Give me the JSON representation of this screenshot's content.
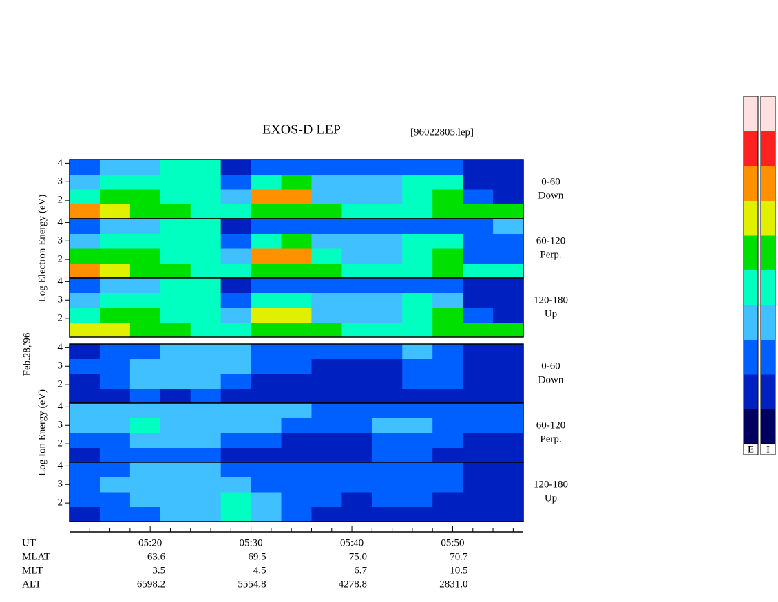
{
  "chart_data": {
    "type": "spectrogram",
    "title": "EXOS-D LEP",
    "file": "[96022805.lep]",
    "date": "Feb.28,'96",
    "xlim": [
      312,
      357
    ],
    "xticks": [
      {
        "value": 320,
        "label": "05:20"
      },
      {
        "value": 330,
        "label": "05:30"
      },
      {
        "value": 340,
        "label": "05:40"
      },
      {
        "value": 350,
        "label": "05:50"
      }
    ],
    "xminor": [
      314,
      316,
      318,
      322,
      324,
      326,
      328,
      332,
      334,
      336,
      338,
      342,
      344,
      346,
      348,
      352,
      354,
      356
    ],
    "ylim": [
      1,
      4.2
    ],
    "yticks": [
      2,
      3,
      4
    ],
    "time_edges": [
      312,
      315,
      318,
      321,
      324,
      327,
      330,
      333,
      336,
      339,
      342,
      345,
      348,
      351,
      354,
      357
    ],
    "energy_edges": [
      1,
      1.8,
      2.6,
      3.4,
      4.2
    ],
    "colorscale": [
      "#000060",
      "#0020c0",
      "#0060ff",
      "#40c0ff",
      "#00ffc0",
      "#00e000",
      "#e0f000",
      "#ff9000",
      "#ff2020",
      "#ffe0e0"
    ],
    "groups": [
      {
        "ylabel": "Log Electron Energy (eV)",
        "colorbar": "E",
        "panels": [
          {
            "angle": "0-60",
            "direction": "Down",
            "values": [
              [
                7,
                6,
                5,
                5,
                4,
                4,
                5,
                5,
                5,
                4,
                4,
                4,
                5,
                5,
                5
              ],
              [
                4,
                5,
                5,
                4,
                4,
                3,
                7,
                7,
                3,
                3,
                3,
                4,
                5,
                2,
                1
              ],
              [
                3,
                4,
                4,
                4,
                4,
                2,
                4,
                5,
                3,
                3,
                3,
                4,
                4,
                1,
                1
              ],
              [
                2,
                3,
                3,
                4,
                4,
                1,
                2,
                2,
                2,
                2,
                2,
                2,
                2,
                1,
                1
              ]
            ]
          },
          {
            "angle": "60-120",
            "direction": "Perp.",
            "values": [
              [
                7,
                6,
                5,
                5,
                4,
                4,
                5,
                5,
                5,
                4,
                4,
                4,
                5,
                4,
                4
              ],
              [
                5,
                5,
                5,
                4,
                4,
                3,
                7,
                7,
                4,
                3,
                3,
                4,
                5,
                2,
                2
              ],
              [
                3,
                4,
                4,
                4,
                4,
                2,
                4,
                5,
                3,
                3,
                3,
                4,
                4,
                2,
                2
              ],
              [
                2,
                3,
                3,
                4,
                4,
                1,
                2,
                2,
                2,
                2,
                2,
                2,
                2,
                2,
                3
              ]
            ]
          },
          {
            "angle": "120-180",
            "direction": "Up",
            "values": [
              [
                6,
                6,
                5,
                5,
                4,
                4,
                5,
                5,
                5,
                4,
                4,
                4,
                5,
                5,
                5
              ],
              [
                4,
                5,
                5,
                4,
                4,
                3,
                6,
                6,
                3,
                3,
                3,
                4,
                5,
                2,
                1
              ],
              [
                3,
                4,
                4,
                4,
                4,
                2,
                4,
                4,
                3,
                3,
                3,
                4,
                3,
                1,
                1
              ],
              [
                2,
                3,
                3,
                4,
                4,
                1,
                2,
                2,
                2,
                2,
                2,
                2,
                2,
                1,
                1
              ]
            ]
          }
        ]
      },
      {
        "ylabel": "Log Ion Energy (eV)",
        "colorbar": "I",
        "panels": [
          {
            "angle": "0-60",
            "direction": "Down",
            "values": [
              [
                1,
                1,
                2,
                1,
                2,
                1,
                1,
                1,
                1,
                1,
                1,
                1,
                1,
                1,
                1
              ],
              [
                1,
                2,
                3,
                3,
                3,
                2,
                1,
                1,
                1,
                1,
                1,
                2,
                2,
                1,
                1
              ],
              [
                2,
                2,
                3,
                3,
                3,
                3,
                2,
                2,
                1,
                1,
                1,
                2,
                2,
                1,
                1
              ],
              [
                1,
                2,
                2,
                3,
                3,
                3,
                2,
                2,
                2,
                2,
                2,
                3,
                2,
                1,
                1
              ]
            ]
          },
          {
            "angle": "60-120",
            "direction": "Perp.",
            "values": [
              [
                1,
                2,
                2,
                2,
                2,
                1,
                1,
                1,
                1,
                1,
                2,
                2,
                1,
                1,
                1
              ],
              [
                2,
                2,
                3,
                3,
                3,
                2,
                2,
                1,
                1,
                1,
                2,
                2,
                2,
                1,
                1
              ],
              [
                3,
                3,
                4,
                3,
                3,
                3,
                3,
                2,
                2,
                2,
                3,
                3,
                2,
                2,
                2
              ],
              [
                3,
                3,
                3,
                3,
                3,
                3,
                3,
                3,
                2,
                2,
                2,
                2,
                2,
                2,
                2
              ]
            ]
          },
          {
            "angle": "120-180",
            "direction": "Up",
            "values": [
              [
                1,
                2,
                2,
                3,
                3,
                4,
                3,
                2,
                1,
                1,
                1,
                1,
                1,
                1,
                1
              ],
              [
                2,
                2,
                3,
                3,
                3,
                4,
                3,
                2,
                2,
                1,
                2,
                2,
                1,
                1,
                1
              ],
              [
                2,
                3,
                3,
                3,
                3,
                3,
                2,
                2,
                2,
                2,
                2,
                2,
                2,
                1,
                1
              ],
              [
                2,
                2,
                3,
                3,
                3,
                2,
                2,
                2,
                2,
                2,
                2,
                2,
                2,
                1,
                1
              ]
            ]
          }
        ]
      }
    ],
    "ut_label": "UT",
    "ephemeris": [
      {
        "name": "MLAT",
        "values": [
          "63.6",
          "69.5",
          "75.0",
          "70.7"
        ]
      },
      {
        "name": "MLT",
        "values": [
          "3.5",
          "4.5",
          "6.7",
          "10.5"
        ]
      },
      {
        "name": "ALT",
        "values": [
          "6598.2",
          "5554.8",
          "4278.8",
          "2831.0"
        ]
      }
    ]
  }
}
